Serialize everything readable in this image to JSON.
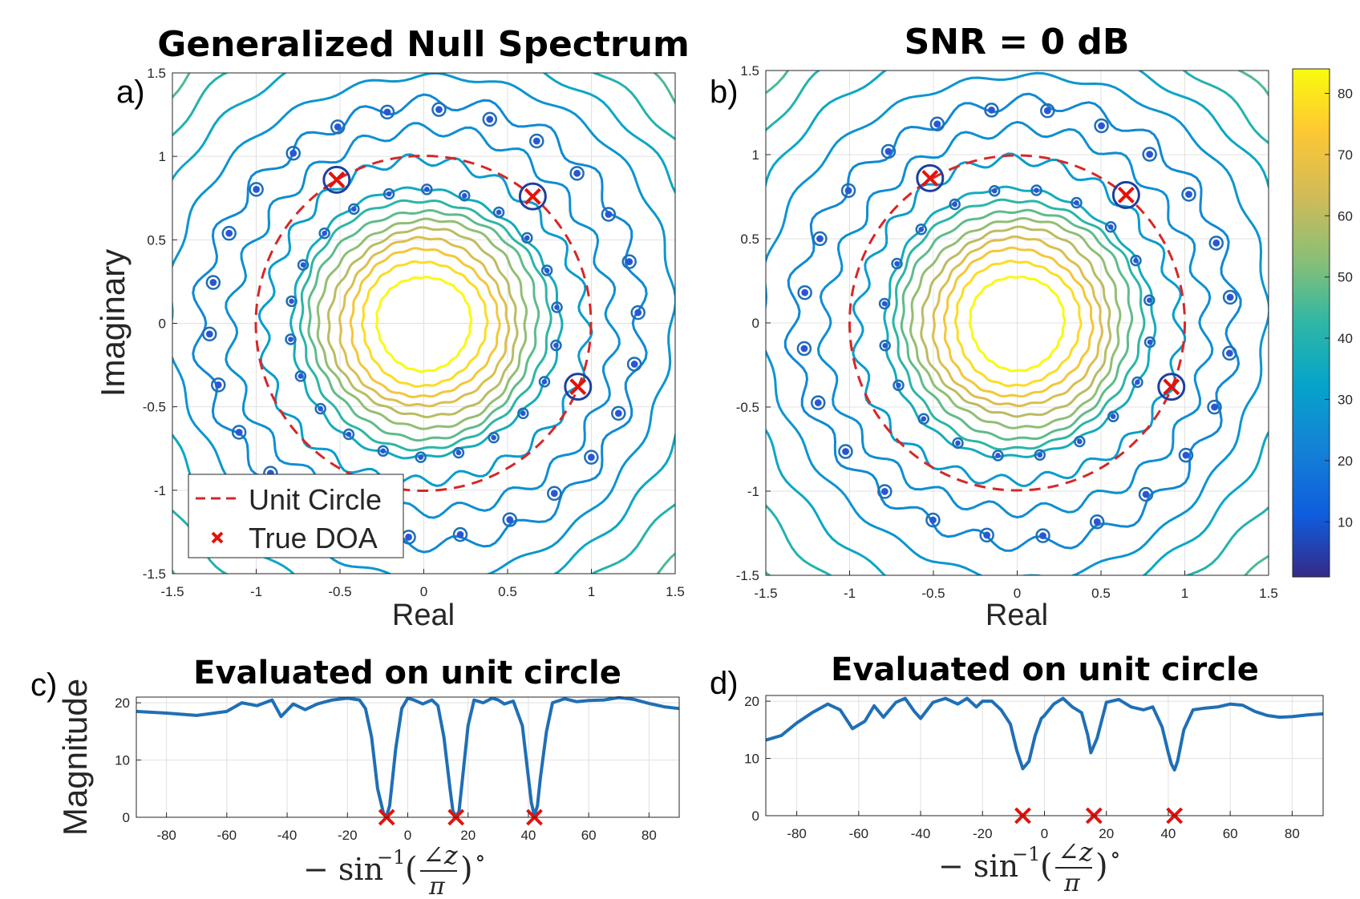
{
  "chart_data": [
    {
      "panel": "a)",
      "type": "contour",
      "title": "Generalized Null Spectrum",
      "xlabel": "Real",
      "ylabel": "Imaginary",
      "xlim": [
        -1.5,
        1.5
      ],
      "ylim": [
        -1.5,
        1.5
      ],
      "xticks": [
        "-1.5",
        "-1",
        "-0.5",
        "0",
        "0.5",
        "1",
        "1.5"
      ],
      "yticks": [
        "-1.5",
        "-1",
        "-0.5",
        "0",
        "0.5",
        "1",
        "1.5"
      ],
      "grid": true,
      "legend": {
        "position": "bottom-left",
        "entries": [
          "Unit Circle",
          "True DOA"
        ]
      },
      "unit_circle_radius": 1,
      "true_doa": [
        {
          "x": -0.52,
          "y": 0.86
        },
        {
          "x": 0.65,
          "y": 0.76
        },
        {
          "x": 0.92,
          "y": -0.38
        }
      ],
      "contour_levels": [
        10,
        15,
        20,
        25,
        30,
        35,
        40,
        45,
        50,
        55,
        60,
        65,
        70,
        75,
        80
      ],
      "inner_zero_count": 22,
      "outer_zero_count": 26
    },
    {
      "panel": "b)",
      "type": "contour",
      "title": "SNR = 0 dB",
      "xlabel": "Real",
      "ylabel": "",
      "xlim": [
        -1.5,
        1.5
      ],
      "ylim": [
        -1.5,
        1.5
      ],
      "xticks": [
        "-1.5",
        "-1",
        "-0.5",
        "0",
        "0.5",
        "1",
        "1.5"
      ],
      "yticks": [
        "-1.5",
        "-1",
        "-0.5",
        "0",
        "0.5",
        "1",
        "1.5"
      ],
      "grid": true,
      "unit_circle_radius": 1,
      "true_doa": [
        {
          "x": -0.52,
          "y": 0.86
        },
        {
          "x": 0.65,
          "y": 0.76
        },
        {
          "x": 0.92,
          "y": -0.38
        }
      ],
      "contour_levels": [
        10,
        15,
        20,
        25,
        30,
        35,
        40,
        45,
        50,
        55,
        60,
        65,
        70,
        75,
        80
      ],
      "colorbar": {
        "ticks": [
          "10",
          "20",
          "30",
          "40",
          "50",
          "60",
          "70",
          "80"
        ],
        "range": [
          1,
          84
        ]
      },
      "inner_zero_count": 20,
      "outer_zero_count": 24
    },
    {
      "panel": "c)",
      "type": "line",
      "title": "Evaluated on unit circle",
      "xlabel": "−sin⁻¹(∠z / π)°",
      "ylabel": "Magnitude",
      "xlim": [
        -90,
        90
      ],
      "ylim": [
        0,
        21
      ],
      "xticks": [
        "-80",
        "-60",
        "-40",
        "-20",
        "0",
        "20",
        "40",
        "60",
        "80"
      ],
      "yticks": [
        "0",
        "10",
        "20"
      ],
      "grid": true,
      "true_doa_x": [
        -7,
        16,
        42
      ],
      "series": [
        {
          "x": [
            -90,
            -80,
            -70,
            -60,
            -55,
            -50,
            -45,
            -42,
            -38,
            -34,
            -30,
            -25,
            -20,
            -16,
            -14,
            -12,
            -10,
            -8,
            -7,
            -6,
            -4,
            -2,
            0,
            2,
            5,
            8,
            10,
            12,
            14,
            15,
            16,
            17,
            18,
            20,
            22,
            25,
            28,
            30,
            32,
            35,
            38,
            40,
            41,
            42,
            43,
            44,
            46,
            48,
            52,
            56,
            60,
            65,
            70,
            75,
            80,
            85,
            90
          ],
          "values": [
            18.5,
            18.2,
            17.8,
            18.5,
            20,
            19.5,
            20.5,
            17.6,
            19.8,
            18.8,
            19.8,
            20.5,
            20.8,
            20.5,
            19,
            14,
            5,
            0.6,
            0.3,
            2,
            12,
            19,
            20.8,
            20.5,
            19.8,
            20.5,
            19.5,
            14,
            5,
            1,
            0.2,
            1,
            6,
            16,
            20.5,
            20,
            20.8,
            20.5,
            19.8,
            20.3,
            16,
            7,
            2.5,
            0.3,
            2,
            7,
            15,
            20,
            20.7,
            20.2,
            20.4,
            20.5,
            20.9,
            20.6,
            19.9,
            19.3,
            19
          ]
        }
      ]
    },
    {
      "panel": "d)",
      "type": "line",
      "title": "Evaluated on unit circle",
      "xlabel": "−sin⁻¹(∠z / π)°",
      "ylabel": "",
      "xlim": [
        -90,
        90
      ],
      "ylim": [
        0,
        21
      ],
      "xticks": [
        "-80",
        "-60",
        "-40",
        "-20",
        "0",
        "20",
        "40",
        "60",
        "80"
      ],
      "yticks": [
        "0",
        "10",
        "20"
      ],
      "grid": true,
      "true_doa_x": [
        -7,
        16,
        42
      ],
      "series": [
        {
          "x": [
            -90,
            -85,
            -80,
            -75,
            -70,
            -66,
            -62,
            -58,
            -55,
            -52,
            -48,
            -45,
            -42,
            -40,
            -36,
            -32,
            -28,
            -25,
            -22,
            -20,
            -17,
            -14,
            -11,
            -9,
            -7,
            -5,
            -3,
            -1,
            0,
            3,
            6,
            9,
            12,
            14,
            15,
            17,
            20,
            24,
            28,
            32,
            35,
            38,
            40,
            41,
            42,
            43,
            45,
            48,
            52,
            56,
            60,
            64,
            68,
            72,
            76,
            80,
            85,
            90
          ],
          "values": [
            13.2,
            14,
            16.2,
            18,
            19.5,
            18.5,
            15.2,
            16.5,
            19.2,
            17.2,
            19.8,
            20.5,
            18.2,
            17,
            19.8,
            20.5,
            19.5,
            20.5,
            19,
            20,
            20,
            18.5,
            16,
            11.5,
            8.2,
            9.5,
            14,
            17,
            17.5,
            19.5,
            20.5,
            19,
            18,
            14,
            11,
            13.5,
            19.8,
            20.3,
            19,
            18.5,
            19,
            15.5,
            11,
            9,
            8,
            9.5,
            15,
            18.5,
            18.8,
            19,
            19.5,
            19.3,
            18.2,
            17.5,
            17.2,
            17.3,
            17.6,
            17.8
          ]
        }
      ]
    }
  ],
  "panel_labels": {
    "a": "a)",
    "b": "b)",
    "c": "c)",
    "d": "d)"
  },
  "titles": {
    "a": "Generalized Null Spectrum",
    "b": "SNR = 0 dB",
    "c": "Evaluated on unit circle",
    "d": "Evaluated on unit circle"
  },
  "axis_labels": {
    "real_a": "Real",
    "real_b": "Real",
    "imaginary": "Imaginary",
    "magnitude": "Magnitude"
  },
  "legend": {
    "unit_circle": "Unit Circle",
    "true_doa": "True DOA"
  },
  "colors": {
    "unit_circle": "#d62728",
    "doa_marker": "#e3120b",
    "line": "#1f6fb5",
    "grid": "#e0e0e0"
  }
}
